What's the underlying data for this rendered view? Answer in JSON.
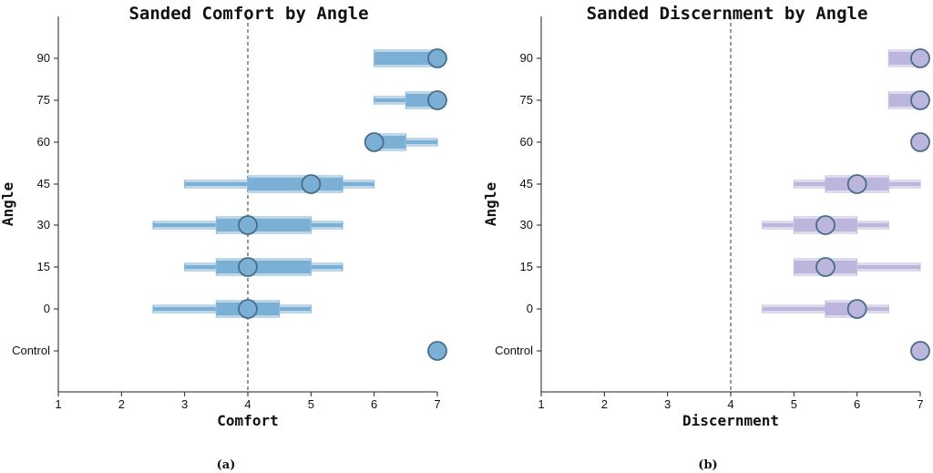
{
  "chart_data": [
    {
      "type": "boxplot",
      "title": "Sanded Comfort by Angle",
      "xlabel": "Comfort",
      "ylabel": "Angle",
      "caption": "(a)",
      "xlim": [
        1,
        7
      ],
      "xticks": [
        "1",
        "2",
        "3",
        "4",
        "5",
        "6",
        "7"
      ],
      "reference_line": 4,
      "color": "#7bafd4",
      "edge_color": "#4a6d8c",
      "categories": [
        "90",
        "75",
        "60",
        "45",
        "30",
        "15",
        "0",
        "Control"
      ],
      "rows": [
        {
          "label": "90",
          "whisker_low": 6.0,
          "q1": 6.0,
          "q3": 7.0,
          "whisker_high": 7.0,
          "median": 7.0
        },
        {
          "label": "75",
          "whisker_low": 6.0,
          "q1": 6.5,
          "q3": 7.0,
          "whisker_high": 7.0,
          "median": 7.0
        },
        {
          "label": "60",
          "whisker_low": 6.0,
          "q1": 6.0,
          "q3": 6.5,
          "whisker_high": 7.0,
          "median": 6.0
        },
        {
          "label": "45",
          "whisker_low": 3.0,
          "q1": 4.0,
          "q3": 5.5,
          "whisker_high": 6.0,
          "median": 5.0
        },
        {
          "label": "30",
          "whisker_low": 2.5,
          "q1": 3.5,
          "q3": 5.0,
          "whisker_high": 5.5,
          "median": 4.0
        },
        {
          "label": "15",
          "whisker_low": 3.0,
          "q1": 3.5,
          "q3": 5.0,
          "whisker_high": 5.5,
          "median": 4.0
        },
        {
          "label": "0",
          "whisker_low": 2.5,
          "q1": 3.5,
          "q3": 4.5,
          "whisker_high": 5.0,
          "median": 4.0
        },
        {
          "label": "Control",
          "whisker_low": 7.0,
          "q1": 7.0,
          "q3": 7.0,
          "whisker_high": 7.0,
          "median": 7.0
        }
      ]
    },
    {
      "type": "boxplot",
      "title": "Sanded Discernment by Angle",
      "xlabel": "Discernment",
      "ylabel": "Angle",
      "caption": "(b)",
      "xlim": [
        1,
        7
      ],
      "xticks": [
        "1",
        "2",
        "3",
        "4",
        "5",
        "6",
        "7"
      ],
      "reference_line": 4,
      "color": "#bcb6dc",
      "edge_color": "#4a6d8c",
      "categories": [
        "90",
        "75",
        "60",
        "45",
        "30",
        "15",
        "0",
        "Control"
      ],
      "rows": [
        {
          "label": "90",
          "whisker_low": 6.5,
          "q1": 6.5,
          "q3": 7.0,
          "whisker_high": 7.0,
          "median": 7.0
        },
        {
          "label": "75",
          "whisker_low": 6.5,
          "q1": 6.5,
          "q3": 7.0,
          "whisker_high": 7.0,
          "median": 7.0
        },
        {
          "label": "60",
          "whisker_low": 7.0,
          "q1": 7.0,
          "q3": 7.0,
          "whisker_high": 7.0,
          "median": 7.0
        },
        {
          "label": "45",
          "whisker_low": 5.0,
          "q1": 5.5,
          "q3": 6.5,
          "whisker_high": 7.0,
          "median": 6.0
        },
        {
          "label": "30",
          "whisker_low": 4.5,
          "q1": 5.0,
          "q3": 6.0,
          "whisker_high": 6.5,
          "median": 5.5
        },
        {
          "label": "15",
          "whisker_low": 5.0,
          "q1": 5.0,
          "q3": 6.0,
          "whisker_high": 7.0,
          "median": 5.5
        },
        {
          "label": "0",
          "whisker_low": 4.5,
          "q1": 5.5,
          "q3": 6.0,
          "whisker_high": 6.5,
          "median": 6.0
        },
        {
          "label": "Control",
          "whisker_low": 7.0,
          "q1": 7.0,
          "q3": 7.0,
          "whisker_high": 7.0,
          "median": 7.0
        }
      ]
    }
  ]
}
